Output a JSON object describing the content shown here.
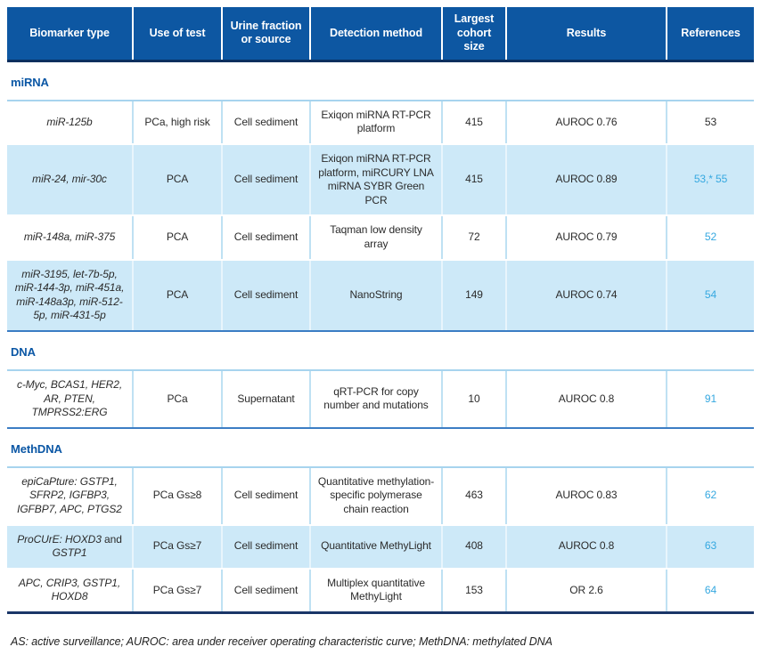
{
  "colors": {
    "header_bg": "#0d57a2",
    "header_text": "#ffffff",
    "header_bottom_rule": "#0a2f5e",
    "section_label": "#0b57a5",
    "row_alt_bg": "#cde9f8",
    "reference_accent": "#35a8e0",
    "body_text": "#2b2b2b",
    "rule_light": "#a7d4ee",
    "rule_medium": "#3b7dc4",
    "rule_dark": "#1a3668",
    "rule_bottom": "#8cc8ea"
  },
  "header": {
    "columns": [
      "Biomarker type",
      "Use of test",
      "Urine fraction or source",
      "Detection method",
      "Largest cohort size",
      "Results",
      "References"
    ]
  },
  "sections": [
    {
      "label": "miRNA",
      "rows": [
        {
          "biomarker": "miR-125b",
          "use_of_test": "PCa, high risk",
          "urine_fraction": "Cell sediment",
          "detection_method": "Exiqon miRNA RT-PCR platform",
          "largest_cohort_size": "415",
          "results": "AUROC 0.76",
          "references": "53"
        },
        {
          "biomarker": "miR-24, mir-30c",
          "use_of_test": "PCA",
          "urine_fraction": "Cell sediment",
          "detection_method": "Exiqon miRNA RT-PCR platform, miRCURY LNA miRNA SYBR Green PCR",
          "largest_cohort_size": "415",
          "results": "AUROC 0.89",
          "references": "53,* 55"
        },
        {
          "biomarker": "miR-148a, miR-375",
          "use_of_test": "PCA",
          "urine_fraction": "Cell sediment",
          "detection_method": "Taqman low density array",
          "largest_cohort_size": "72",
          "results": "AUROC 0.79",
          "references": "52"
        },
        {
          "biomarker": "miR-3195, let-7b-5p, miR-144-3p, miR-451a, miR-148a3p, miR-512-5p, miR-431-5p",
          "use_of_test": "PCA",
          "urine_fraction": "Cell sediment",
          "detection_method": "NanoString",
          "largest_cohort_size": "149",
          "results": "AUROC 0.74",
          "references": "54"
        }
      ]
    },
    {
      "label": "DNA",
      "rows": [
        {
          "biomarker": "c-Myc, BCAS1, HER2, AR, PTEN, TMPRSS2:ERG",
          "use_of_test": "PCa",
          "urine_fraction": "Supernatant",
          "detection_method": "qRT-PCR for copy number and mutations",
          "largest_cohort_size": "10",
          "results": "AUROC 0.8",
          "references": "91"
        }
      ]
    },
    {
      "label": "MethDNA",
      "rows": [
        {
          "biomarker": "epiCaPture: GSTP1, SFRP2, IGFBP3, IGFBP7, APC, PTGS2",
          "use_of_test": "PCa Gs≥8",
          "urine_fraction": "Cell sediment",
          "detection_method": "Quantitative methylation-specific polymerase chain reaction",
          "largest_cohort_size": "463",
          "results": "AUROC 0.83",
          "references": "62"
        },
        {
          "biomarker_parts": {
            "italic1": "ProCUrE: HOXD3",
            "upright": " and ",
            "italic2": "GSTP1"
          },
          "use_of_test": "PCa Gs≥7",
          "urine_fraction": "Cell sediment",
          "detection_method": "Quantitative MethyLight",
          "largest_cohort_size": "408",
          "results": "AUROC 0.8",
          "references": "63"
        },
        {
          "biomarker": "APC, CRIP3, GSTP1, HOXD8",
          "use_of_test": "PCa Gs≥7",
          "urine_fraction": "Cell sediment",
          "detection_method": "Multiplex quantitative MethyLight",
          "largest_cohort_size": "153",
          "results": "OR 2.6",
          "references": "64"
        }
      ]
    }
  ],
  "footnote": "AS: active surveillance; AUROC: area under receiver operating characteristic curve; MethDNA: methylated DNA"
}
